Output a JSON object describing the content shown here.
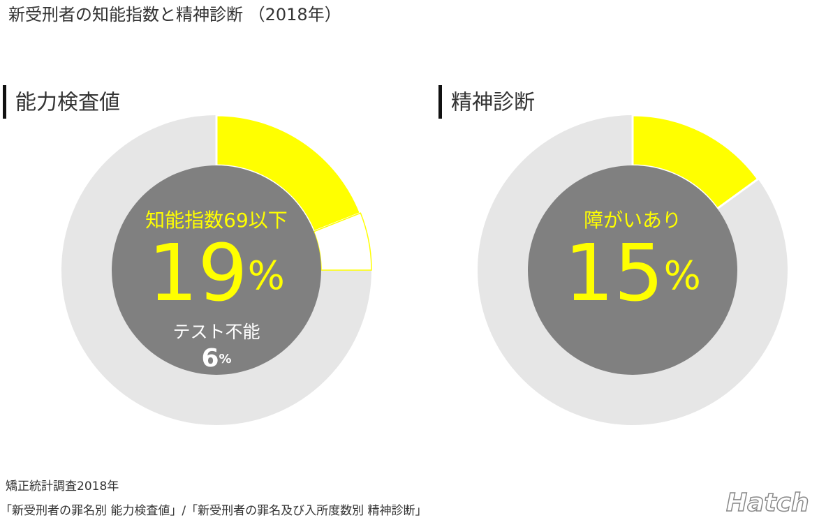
{
  "title": "新受刑者の知能指数と精神診断 （2018年）",
  "chart_data": [
    {
      "type": "donut",
      "subtitle": "能力検査値",
      "categories": [
        "知能指数69以下",
        "テスト不能"
      ],
      "values": [
        19,
        6
      ],
      "value_labels": [
        "19%",
        "6%"
      ],
      "colors": [
        "#ffff00",
        "#ffffff"
      ]
    },
    {
      "type": "donut",
      "subtitle": "精神診断",
      "categories": [
        "障がいあり"
      ],
      "values": [
        15
      ],
      "value_labels": [
        "15%"
      ],
      "colors": [
        "#ffff00"
      ]
    }
  ],
  "source": [
    "矯正統計調査2018年",
    "「新受刑者の罪名別 能力検査値」/「新受刑者の罪名及び入所度数別 精神診断」"
  ],
  "logo": "Hatch"
}
